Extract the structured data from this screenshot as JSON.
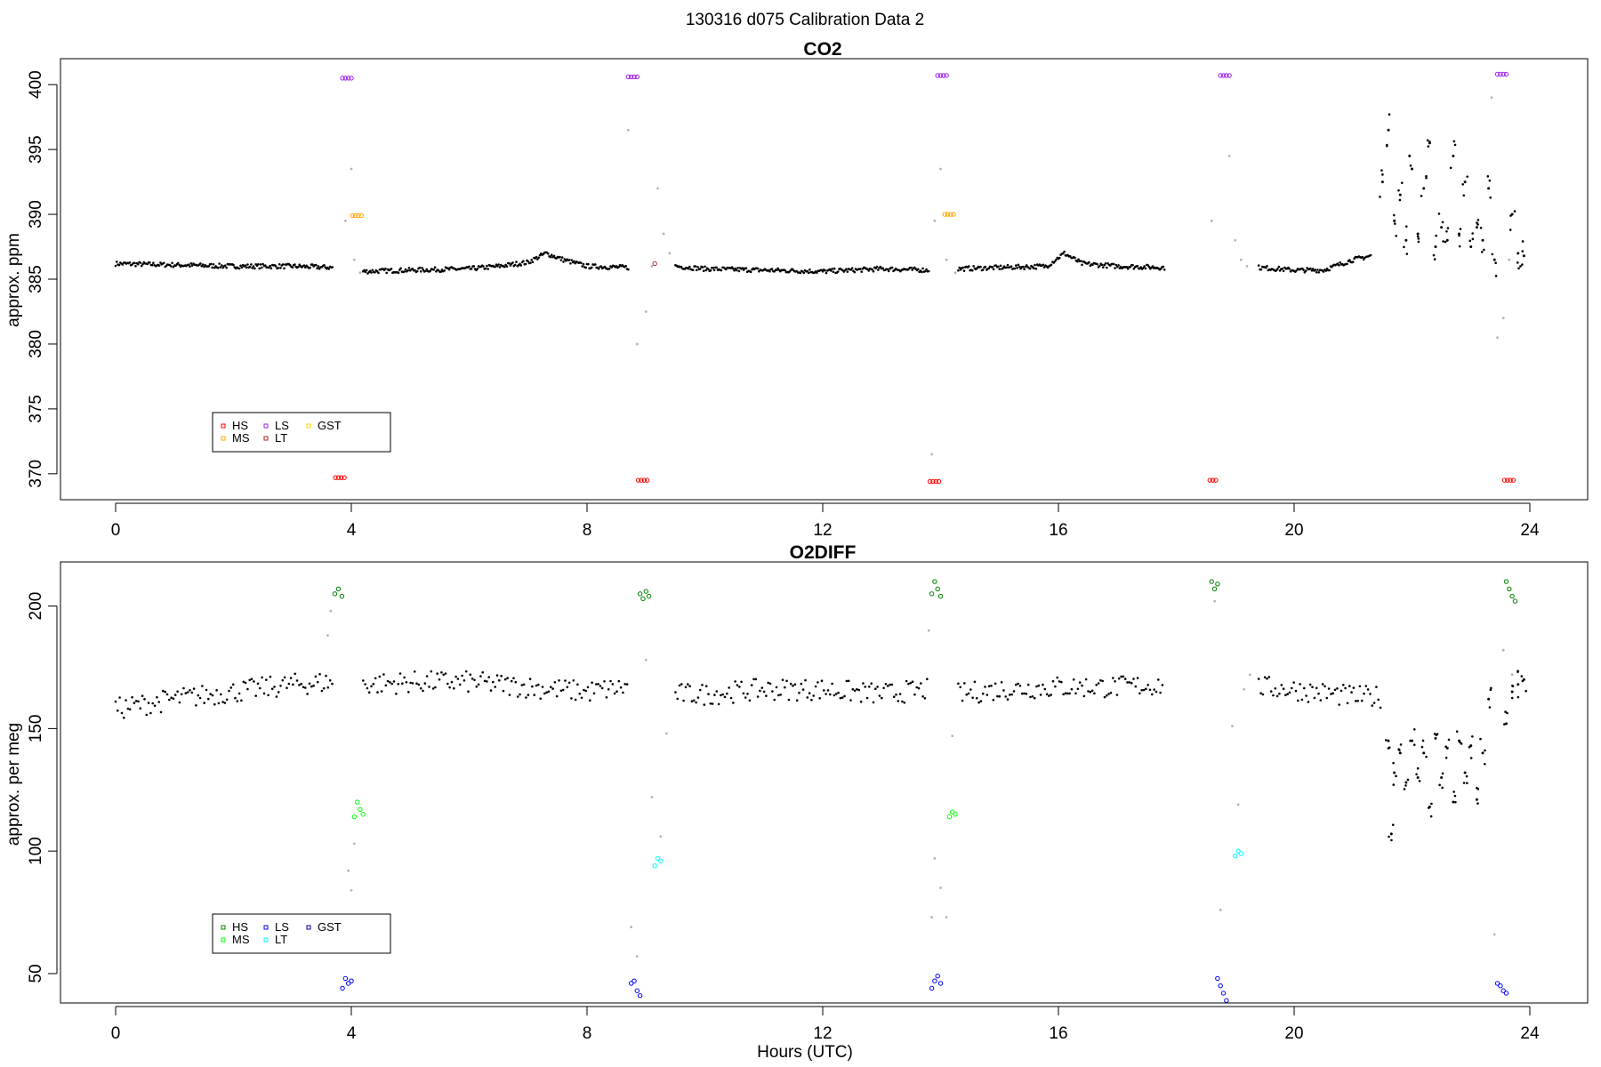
{
  "figure": {
    "title": "130316   d075   Calibration Data 2",
    "xlabel": "Hours (UTC)"
  },
  "chart_data": [
    {
      "type": "scatter",
      "title": "CO2",
      "xlabel": "Hours (UTC)",
      "ylabel": "approx. ppm",
      "xlim": [
        0,
        24
      ],
      "ylim": [
        368,
        402
      ],
      "xticks": [
        0,
        4,
        8,
        12,
        16,
        20,
        24
      ],
      "yticks": [
        370,
        375,
        380,
        385,
        390,
        395,
        400
      ],
      "grid": false,
      "legend": {
        "placement": "bottom-left",
        "entries": [
          {
            "name": "HS",
            "color": "#ff0000"
          },
          {
            "name": "MS",
            "color": "#ffa500"
          },
          {
            "name": "LS",
            "color": "#a020f0"
          },
          {
            "name": "LT",
            "color": "#b22222"
          },
          {
            "name": "GST",
            "color": "#ffd700"
          }
        ]
      },
      "baseline": {
        "color": "#000000",
        "segments": [
          {
            "x": [
              0.0,
              1.0,
              2.0,
              3.0,
              3.7
            ],
            "y": [
              386.2,
              386.1,
              386.0,
              386.0,
              385.9
            ]
          },
          {
            "x": [
              4.2,
              5.0,
              6.0,
              6.5,
              7.0,
              7.3,
              7.6,
              8.0,
              8.7
            ],
            "y": [
              385.6,
              385.7,
              385.8,
              386.0,
              386.3,
              387.0,
              386.5,
              386.0,
              385.9
            ]
          },
          {
            "x": [
              9.5,
              10.0,
              11.0,
              12.0,
              13.0,
              13.8
            ],
            "y": [
              386.0,
              385.8,
              385.7,
              385.6,
              385.8,
              385.7
            ]
          },
          {
            "x": [
              14.3,
              15.0,
              15.8,
              16.1,
              16.4,
              17.0,
              17.8
            ],
            "y": [
              385.8,
              385.9,
              386.0,
              387.0,
              386.2,
              386.0,
              385.9
            ]
          },
          {
            "x": [
              19.4,
              20.0,
              20.5,
              21.0,
              21.3
            ],
            "y": [
              385.9,
              385.7,
              385.7,
              386.5,
              386.8
            ]
          }
        ],
        "scatter": {
          "x": [
            21.5,
            21.6,
            21.7,
            21.8,
            21.9,
            22.0,
            22.1,
            22.2,
            22.3,
            22.4,
            22.5,
            22.6,
            22.7,
            22.8,
            22.9,
            23.0,
            23.1,
            23.2,
            23.3,
            23.4,
            23.7,
            23.8,
            23.9
          ],
          "y": [
            392.5,
            396.5,
            389.5,
            391.5,
            388.0,
            393.5,
            388.5,
            392.0,
            395.5,
            387.5,
            389.0,
            388.0,
            394.5,
            388.5,
            392.5,
            387.5,
            389.0,
            388.0,
            392.0,
            386.5,
            390.0,
            387.0,
            386.8
          ]
        }
      },
      "transition": {
        "color": "#b4b4b4",
        "x": [
          3.9,
          4.0,
          4.05,
          4.15,
          8.7,
          8.85,
          9.0,
          9.1,
          9.2,
          9.3,
          9.4,
          13.85,
          13.9,
          14.0,
          14.1,
          14.25,
          18.6,
          18.9,
          19.0,
          19.1,
          19.2,
          23.35,
          23.45,
          23.55,
          23.65
        ],
        "y": [
          389.5,
          393.5,
          386.5,
          385.5,
          396.5,
          380.0,
          382.5,
          386.0,
          392.0,
          388.5,
          387.0,
          371.5,
          389.5,
          393.5,
          386.5,
          385.5,
          389.5,
          394.5,
          388.0,
          386.5,
          386.0,
          399.0,
          380.5,
          382.0,
          386.5
        ]
      },
      "series": [
        {
          "name": "HS",
          "color": "#ff0000",
          "x": [
            3.73,
            3.78,
            3.83,
            3.88,
            8.87,
            8.92,
            8.97,
            9.02,
            13.82,
            13.87,
            13.92,
            13.97,
            18.57,
            18.62,
            18.67,
            23.57,
            23.62,
            23.67,
            23.72
          ],
          "y": [
            369.7,
            369.7,
            369.7,
            369.7,
            369.5,
            369.5,
            369.5,
            369.5,
            369.4,
            369.4,
            369.4,
            369.4,
            369.5,
            369.5,
            369.5,
            369.5,
            369.5,
            369.5,
            369.5
          ]
        },
        {
          "name": "LS",
          "color": "#a020f0",
          "x": [
            3.85,
            3.9,
            3.95,
            4.0,
            8.7,
            8.75,
            8.8,
            8.85,
            13.95,
            14.0,
            14.05,
            14.1,
            18.75,
            18.8,
            18.85,
            18.9,
            23.45,
            23.5,
            23.55,
            23.6
          ],
          "y": [
            400.5,
            400.5,
            400.5,
            400.5,
            400.6,
            400.6,
            400.6,
            400.6,
            400.7,
            400.7,
            400.7,
            400.7,
            400.7,
            400.7,
            400.7,
            400.7,
            400.8,
            400.8,
            400.8,
            400.8
          ]
        },
        {
          "name": "MS",
          "color": "#ffa500",
          "x": [
            4.02,
            4.07,
            4.12,
            4.17,
            14.07,
            14.12,
            14.17,
            14.22
          ],
          "y": [
            389.9,
            389.9,
            389.9,
            389.9,
            390.0,
            390.0,
            390.0,
            390.0
          ]
        },
        {
          "name": "LT",
          "color": "#b22222",
          "x": [
            9.15
          ],
          "y": [
            386.2
          ]
        }
      ]
    },
    {
      "type": "scatter",
      "title": "O2DIFF",
      "xlabel": "Hours (UTC)",
      "ylabel": "approx. per meg",
      "xlim": [
        0,
        24
      ],
      "ylim": [
        38,
        218
      ],
      "xticks": [
        0,
        4,
        8,
        12,
        16,
        20,
        24
      ],
      "yticks": [
        50,
        100,
        150,
        200
      ],
      "grid": false,
      "legend": {
        "placement": "bottom-left",
        "entries": [
          {
            "name": "HS",
            "color": "#008000"
          },
          {
            "name": "MS",
            "color": "#00ff00"
          },
          {
            "name": "LS",
            "color": "#0000ff"
          },
          {
            "name": "LT",
            "color": "#00ffff"
          },
          {
            "name": "GST",
            "color": "#00008b"
          }
        ]
      },
      "baseline": {
        "color": "#000000",
        "segments": [
          {
            "x": [
              0.0,
              1.0,
              2.0,
              3.0,
              3.7
            ],
            "y": [
              158,
              162,
              165,
              168,
              169
            ]
          },
          {
            "x": [
              4.2,
              5.0,
              6.0,
              7.0,
              8.0,
              8.7
            ],
            "y": [
              168,
              169,
              169,
              167,
              165,
              167
            ]
          },
          {
            "x": [
              9.5,
              10.0,
              11.0,
              12.0,
              13.0,
              13.8
            ],
            "y": [
              164,
              164,
              166,
              166,
              164,
              166
            ]
          },
          {
            "x": [
              14.3,
              15.0,
              16.0,
              17.0,
              17.8
            ],
            "y": [
              164,
              166,
              167,
              167,
              168
            ]
          },
          {
            "x": [
              19.4,
              20.0,
              21.0,
              21.5
            ],
            "y": [
              167,
              166,
              163,
              163
            ]
          }
        ],
        "scatter": {
          "x": [
            21.6,
            21.65,
            21.7,
            21.8,
            21.9,
            22.0,
            22.1,
            22.2,
            22.3,
            22.4,
            22.5,
            22.6,
            22.7,
            22.8,
            22.9,
            23.0,
            23.1,
            23.2,
            23.3,
            23.6,
            23.7,
            23.8,
            23.9
          ],
          "y": [
            145,
            107,
            132,
            140,
            128,
            145,
            130,
            140,
            118,
            146,
            130,
            142,
            120,
            145,
            132,
            143,
            121,
            140,
            162,
            152,
            165,
            168,
            170
          ]
        }
      },
      "transition": {
        "color": "#b4b4b4",
        "x": [
          3.6,
          3.65,
          3.95,
          4.0,
          4.05,
          8.75,
          8.85,
          9.0,
          9.1,
          9.25,
          9.35,
          13.8,
          13.85,
          13.9,
          14.0,
          14.1,
          14.2,
          18.65,
          18.75,
          18.95,
          19.05,
          19.15,
          19.25,
          23.4,
          23.55,
          23.7
        ],
        "y": [
          188,
          198,
          92,
          84,
          103,
          69,
          57,
          178,
          122,
          106,
          148,
          190,
          73,
          97,
          85,
          73,
          147,
          202,
          76,
          151,
          119,
          166,
          172,
          66,
          182,
          172
        ]
      },
      "series": [
        {
          "name": "HS",
          "color": "#008000",
          "x": [
            3.72,
            3.78,
            3.84,
            8.9,
            8.95,
            9.0,
            9.05,
            13.85,
            13.9,
            13.95,
            14.0,
            18.6,
            18.65,
            18.7,
            23.6,
            23.65,
            23.7,
            23.75
          ],
          "y": [
            205,
            207,
            204,
            205,
            203,
            206,
            204,
            205,
            210,
            207,
            204,
            210,
            207,
            209,
            210,
            207,
            204,
            202
          ]
        },
        {
          "name": "MS",
          "color": "#00ff00",
          "x": [
            4.05,
            4.1,
            4.15,
            4.2,
            14.15,
            14.2,
            14.25
          ],
          "y": [
            114,
            120,
            117,
            115,
            114,
            116,
            115
          ]
        },
        {
          "name": "LS",
          "color": "#0000ff",
          "x": [
            3.85,
            3.9,
            3.95,
            4.0,
            8.75,
            8.8,
            8.85,
            8.9,
            13.85,
            13.9,
            13.95,
            14.0,
            18.7,
            18.75,
            18.8,
            18.85,
            23.45,
            23.5,
            23.55,
            23.6
          ],
          "y": [
            44,
            48,
            46,
            47,
            46,
            47,
            43,
            41,
            44,
            47,
            49,
            46,
            48,
            45,
            42,
            39,
            46,
            45,
            43,
            42
          ]
        },
        {
          "name": "LT",
          "color": "#00ffff",
          "x": [
            9.15,
            9.2,
            9.25,
            19.0,
            19.05,
            19.1
          ],
          "y": [
            94,
            97,
            96,
            98,
            100,
            99
          ]
        }
      ]
    }
  ]
}
